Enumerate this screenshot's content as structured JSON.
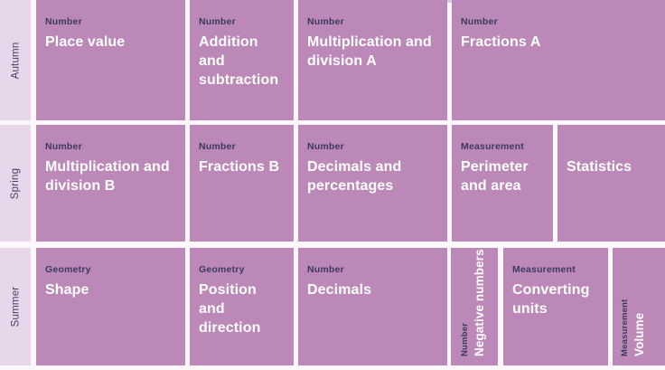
{
  "palette": {
    "block": "#bc88b8",
    "sidebar_bg": "#e8d7ea",
    "category_text": "#3c3a64",
    "heading_text": "#ffffff",
    "page_bg": "#fbf7fb",
    "sidebar_text": "#454060",
    "top_strip": "#dcc9de"
  },
  "rows": [
    {
      "term": "Autumn",
      "blocks": [
        {
          "category": "Number",
          "title": "Place value"
        },
        {
          "category": "Number",
          "title": "Addition and subtraction"
        },
        {
          "category": "Number",
          "title": "Multiplication and division A"
        },
        {
          "category": "Number",
          "title": "Fractions A"
        }
      ]
    },
    {
      "term": "Spring",
      "blocks": [
        {
          "category": "Number",
          "title": "Multiplication and division B"
        },
        {
          "category": "Number",
          "title": "Fractions B"
        },
        {
          "category": "Number",
          "title": "Decimals and percentages"
        },
        {
          "category": "Measurement",
          "title": "Perimeter and area"
        },
        {
          "category": "",
          "title": "Statistics"
        }
      ]
    },
    {
      "term": "Summer",
      "blocks": [
        {
          "category": "Geometry",
          "title": "Shape"
        },
        {
          "category": "Geometry",
          "title": "Position and direction"
        },
        {
          "category": "Number",
          "title": "Decimals"
        },
        {
          "category": "Number",
          "title": "Negative numbers"
        },
        {
          "category": "Measurement",
          "title": "Converting units"
        },
        {
          "category": "Measurement",
          "title": "Volume"
        }
      ]
    }
  ]
}
